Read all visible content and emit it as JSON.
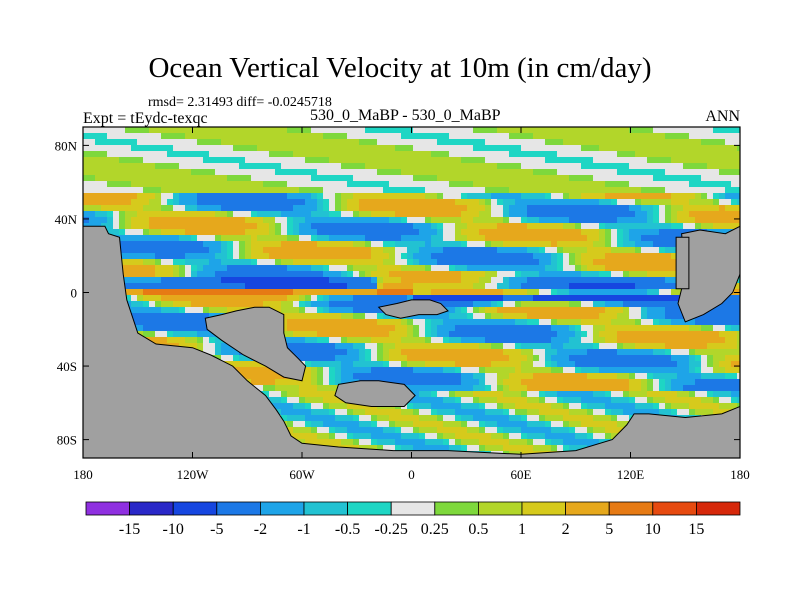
{
  "chart_data": {
    "type": "heatmap",
    "title": "Ocean Vertical Velocity at 10m (in cm/day)",
    "stats_text": "rmsd= 2.31493 diff= -0.0245718",
    "experiment": "Expt = tEydc-texqc",
    "center_label": "530_0_MaBP - 530_0_MaBP",
    "season": "ANN",
    "x_ticks": [
      "180",
      "120W",
      "60W",
      "0",
      "60E",
      "120E",
      "180"
    ],
    "x_tick_values": [
      -180,
      -120,
      -60,
      0,
      60,
      120,
      180
    ],
    "y_ticks": [
      "80N",
      "40N",
      "0",
      "40S",
      "80S"
    ],
    "y_tick_values": [
      80,
      40,
      0,
      -40,
      -80
    ],
    "xlim": [
      -180,
      180
    ],
    "ylim": [
      -90,
      90
    ],
    "colorbar": {
      "labels": [
        "-15",
        "-10",
        "-5",
        "-2",
        "-1",
        "-0.5",
        "-0.25",
        "0.25",
        "0.5",
        "1",
        "2",
        "5",
        "10",
        "15"
      ],
      "colors": [
        "#8f30e0",
        "#2a28c8",
        "#1646e0",
        "#1c78e6",
        "#1ea4e8",
        "#22c2d2",
        "#1ed6c4",
        "#e6e6e6",
        "#7ed83c",
        "#b2d62a",
        "#d6ca1c",
        "#e6a81c",
        "#e67a14",
        "#e64a10",
        "#d6280a"
      ]
    },
    "land_color": "#a0a0a0",
    "land_label": "land (masked)"
  }
}
